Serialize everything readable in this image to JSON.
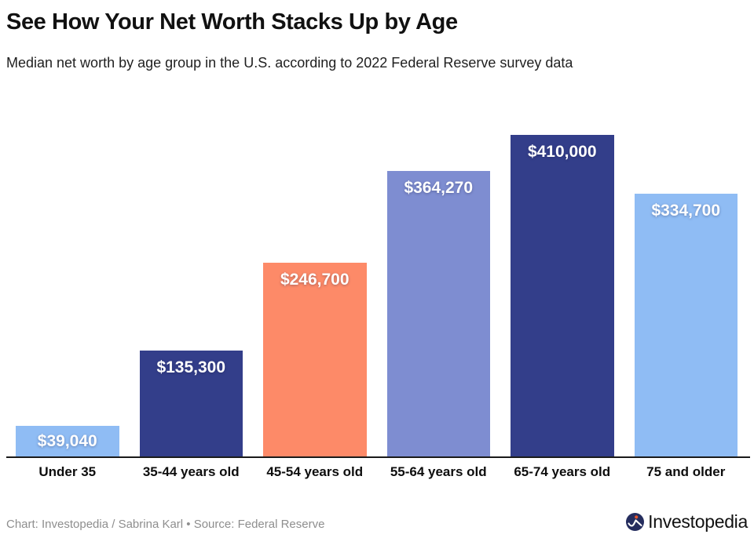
{
  "header": {
    "title": "See How Your Net Worth Stacks Up by Age",
    "subtitle": "Median net worth by age group in the U.S. according to 2022 Federal Reserve survey data"
  },
  "chart_data": {
    "type": "bar",
    "title": "See How Your Net Worth Stacks Up by Age",
    "subtitle": "Median net worth by age group in the U.S. according to 2022 Federal Reserve survey data",
    "categories": [
      "Under 35",
      "35-44 years old",
      "45-54 years old",
      "55-64 years old",
      "65-74 years old",
      "75 and older"
    ],
    "values": [
      39040,
      135300,
      246700,
      364270,
      410000,
      334700
    ],
    "value_labels": [
      "$39,040",
      "$135,300",
      "$246,700",
      "$364,270",
      "$410,000",
      "$334,700"
    ],
    "bar_colors": [
      "#8FBCF4",
      "#333E8A",
      "#FD8A68",
      "#7E8DD1",
      "#333E8A",
      "#8FBCF4"
    ],
    "xlabel": "",
    "ylabel": "",
    "ylim": [
      0,
      462000
    ],
    "grid": false,
    "legend": false,
    "orientation": "vertical",
    "label_position": "inside-top"
  },
  "footer": {
    "credit": "Chart: Investopedia / Sabrina Karl • Source: Federal Reserve",
    "brand": "Investopedia"
  },
  "colors": {
    "background": "#ffffff",
    "axis": "#1a1a1a",
    "title_text": "#111111",
    "credit_text": "#8e8e8e",
    "logo_navy": "#252D5E",
    "logo_dot": "#E4572E"
  }
}
